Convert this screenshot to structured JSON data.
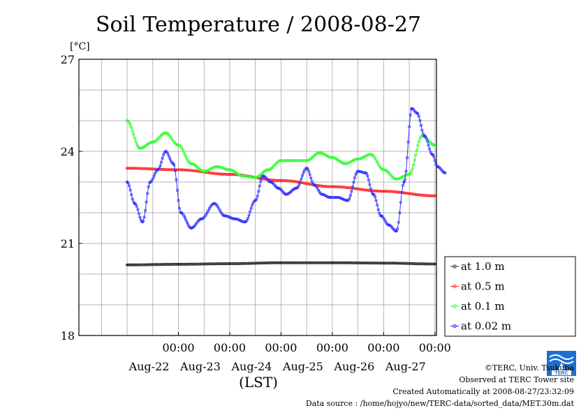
{
  "chart_data": {
    "type": "line",
    "title": "Soil Temperature / 2008-08-27",
    "unit_label": "[°C]",
    "xlabel": "(LST)",
    "ylim": [
      18,
      27
    ],
    "yticks": [
      "18",
      "21",
      "24",
      "27"
    ],
    "xlim": [
      -0.94,
      6.03
    ],
    "xtick_labels": [
      {
        "time": "00:00",
        "date": "Aug-22",
        "x": 1
      },
      {
        "time": "00:00",
        "date": "Aug-23",
        "x": 2
      },
      {
        "time": "00:00",
        "date": "Aug-24",
        "x": 3
      },
      {
        "time": "00:00",
        "date": "Aug-25",
        "x": 4
      },
      {
        "time": "00:00",
        "date": "Aug-26",
        "x": 5
      },
      {
        "time": "00:00",
        "date": "Aug-27",
        "x": 6
      }
    ],
    "grid": true,
    "legend_position": "bottom-right-outside",
    "series": [
      {
        "name": "at 1.0 m",
        "color": "#333333",
        "x": [
          0,
          1,
          2,
          3,
          4,
          5,
          6
        ],
        "y": [
          20.3,
          20.32,
          20.34,
          20.37,
          20.37,
          20.36,
          20.33
        ]
      },
      {
        "name": "at 0.5 m",
        "color": "#ff3030",
        "x": [
          0,
          1,
          2,
          3,
          4,
          5,
          6
        ],
        "y": [
          23.45,
          23.4,
          23.25,
          23.05,
          22.85,
          22.7,
          22.55
        ]
      },
      {
        "name": "at 0.1 m",
        "color": "#33ff33",
        "x": [
          0,
          0.25,
          0.5,
          0.75,
          1,
          1.25,
          1.5,
          1.75,
          2,
          2.25,
          2.5,
          2.75,
          3,
          3.25,
          3.5,
          3.75,
          4,
          4.25,
          4.5,
          4.75,
          5,
          5.25,
          5.5,
          5.75,
          6
        ],
        "y": [
          25.0,
          24.1,
          24.3,
          24.6,
          24.2,
          23.6,
          23.35,
          23.5,
          23.4,
          23.2,
          23.15,
          23.4,
          23.7,
          23.7,
          23.7,
          23.95,
          23.8,
          23.6,
          23.75,
          23.9,
          23.4,
          23.1,
          23.25,
          24.5,
          24.2
        ]
      },
      {
        "name": "at 0.02 m",
        "color": "#3333ff",
        "x": [
          0,
          0.15,
          0.3,
          0.45,
          0.6,
          0.75,
          0.9,
          1.05,
          1.25,
          1.45,
          1.7,
          1.9,
          2.1,
          2.3,
          2.5,
          2.65,
          2.8,
          2.95,
          3.1,
          3.3,
          3.5,
          3.65,
          3.8,
          3.95,
          4.1,
          4.3,
          4.5,
          4.65,
          4.8,
          4.95,
          5.1,
          5.25,
          5.4,
          5.55,
          5.65,
          5.8,
          5.95,
          6.05,
          6.2
        ],
        "y": [
          23.0,
          22.3,
          21.7,
          23.0,
          23.4,
          24.0,
          23.6,
          22.0,
          21.5,
          21.8,
          22.3,
          21.9,
          21.8,
          21.7,
          22.4,
          23.2,
          23.0,
          22.8,
          22.6,
          22.8,
          23.45,
          22.9,
          22.6,
          22.5,
          22.5,
          22.4,
          23.35,
          23.3,
          22.6,
          21.9,
          21.6,
          21.4,
          23.0,
          25.4,
          25.25,
          24.5,
          23.9,
          23.5,
          23.3
        ]
      }
    ]
  },
  "credits": {
    "copyright": "©TERC, Univ. Tsukuba",
    "observed": "Observed at TERC Tower site",
    "created": "Created Automatically at 2008-08-27/23:32:09",
    "source": "Data source : /home/hojyo/new/TERC-data/sorted_data/MET.30m.dat",
    "logo_text": "TERC"
  }
}
